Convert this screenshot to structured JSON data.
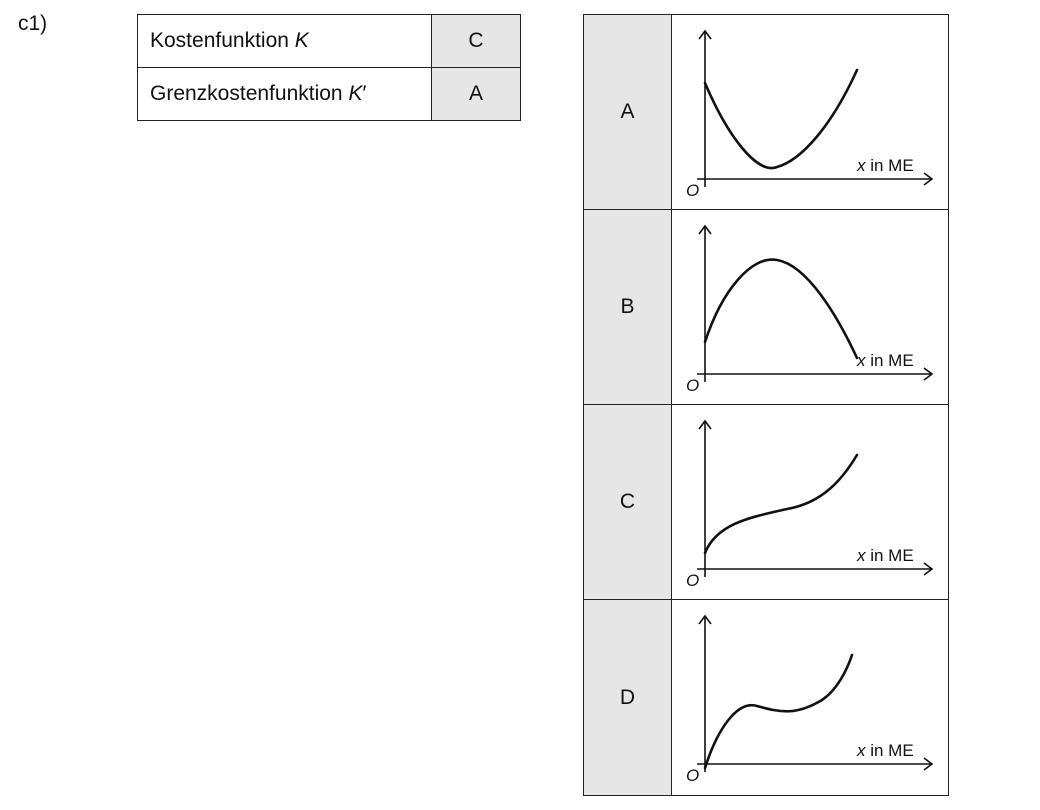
{
  "task": {
    "label": "c1)"
  },
  "matching": [
    {
      "name": "Kostenfunktion",
      "var": "K",
      "prime": "",
      "answer": "C"
    },
    {
      "name": "Grenzkostenfunktion",
      "var": "K",
      "prime": "′",
      "answer": "A"
    }
  ],
  "graphs": [
    {
      "letter": "A",
      "shape": "u-parabola",
      "xlabel_var": "x",
      "xlabel_unit": " in ME",
      "origin": "O"
    },
    {
      "letter": "B",
      "shape": "inverted-parabola",
      "xlabel_var": "x",
      "xlabel_unit": " in ME",
      "origin": "O"
    },
    {
      "letter": "C",
      "shape": "cubic-increasing",
      "xlabel_var": "x",
      "xlabel_unit": " in ME",
      "origin": "O"
    },
    {
      "letter": "D",
      "shape": "cubic-wave",
      "xlabel_var": "x",
      "xlabel_unit": " in ME",
      "origin": "O"
    }
  ]
}
